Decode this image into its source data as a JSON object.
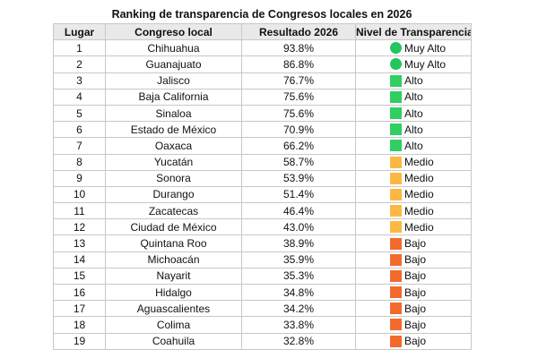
{
  "title": "Ranking de transparencia de Congresos locales en 2026",
  "headers": {
    "lugar": "Lugar",
    "congreso": "Congreso local",
    "resultado": "Resultado 2026",
    "nivel": "Nivel de Transparencia"
  },
  "level_styles": {
    "Muy Alto": {
      "icon": "green-circle-icon",
      "shape": "circle",
      "color": "#22c55e"
    },
    "Alto": {
      "icon": "green-square-icon",
      "shape": "square",
      "color": "#2fcf62"
    },
    "Medio": {
      "icon": "yellow-square-icon",
      "shape": "square",
      "color": "#fcb843"
    },
    "Bajo": {
      "icon": "orange-square-icon",
      "shape": "square",
      "color": "#f26a2e"
    }
  },
  "rows": [
    {
      "lugar": "1",
      "congreso": "Chihuahua",
      "resultado": "93.8%",
      "nivel": "Muy Alto"
    },
    {
      "lugar": "2",
      "congreso": "Guanajuato",
      "resultado": "86.8%",
      "nivel": "Muy Alto"
    },
    {
      "lugar": "3",
      "congreso": "Jalisco",
      "resultado": "76.7%",
      "nivel": "Alto"
    },
    {
      "lugar": "4",
      "congreso": "Baja California",
      "resultado": "75.6%",
      "nivel": "Alto"
    },
    {
      "lugar": "5",
      "congreso": "Sinaloa",
      "resultado": "75.6%",
      "nivel": "Alto"
    },
    {
      "lugar": "6",
      "congreso": "Estado de México",
      "resultado": "70.9%",
      "nivel": "Alto"
    },
    {
      "lugar": "7",
      "congreso": "Oaxaca",
      "resultado": "66.2%",
      "nivel": "Alto"
    },
    {
      "lugar": "8",
      "congreso": "Yucatán",
      "resultado": "58.7%",
      "nivel": "Medio"
    },
    {
      "lugar": "9",
      "congreso": "Sonora",
      "resultado": "53.9%",
      "nivel": "Medio"
    },
    {
      "lugar": "10",
      "congreso": "Durango",
      "resultado": "51.4%",
      "nivel": "Medio"
    },
    {
      "lugar": "11",
      "congreso": "Zacatecas",
      "resultado": "46.4%",
      "nivel": "Medio"
    },
    {
      "lugar": "12",
      "congreso": "Ciudad de México",
      "resultado": "43.0%",
      "nivel": "Medio"
    },
    {
      "lugar": "13",
      "congreso": "Quintana Roo",
      "resultado": "38.9%",
      "nivel": "Bajo"
    },
    {
      "lugar": "14",
      "congreso": "Michoacán",
      "resultado": "35.9%",
      "nivel": "Bajo"
    },
    {
      "lugar": "15",
      "congreso": "Nayarit",
      "resultado": "35.3%",
      "nivel": "Bajo"
    },
    {
      "lugar": "16",
      "congreso": "Hidalgo",
      "resultado": "34.8%",
      "nivel": "Bajo"
    },
    {
      "lugar": "17",
      "congreso": "Aguascalientes",
      "resultado": "34.2%",
      "nivel": "Bajo"
    },
    {
      "lugar": "18",
      "congreso": "Colima",
      "resultado": "33.8%",
      "nivel": "Bajo"
    },
    {
      "lugar": "19",
      "congreso": "Coahuila",
      "resultado": "32.8%",
      "nivel": "Bajo"
    }
  ]
}
